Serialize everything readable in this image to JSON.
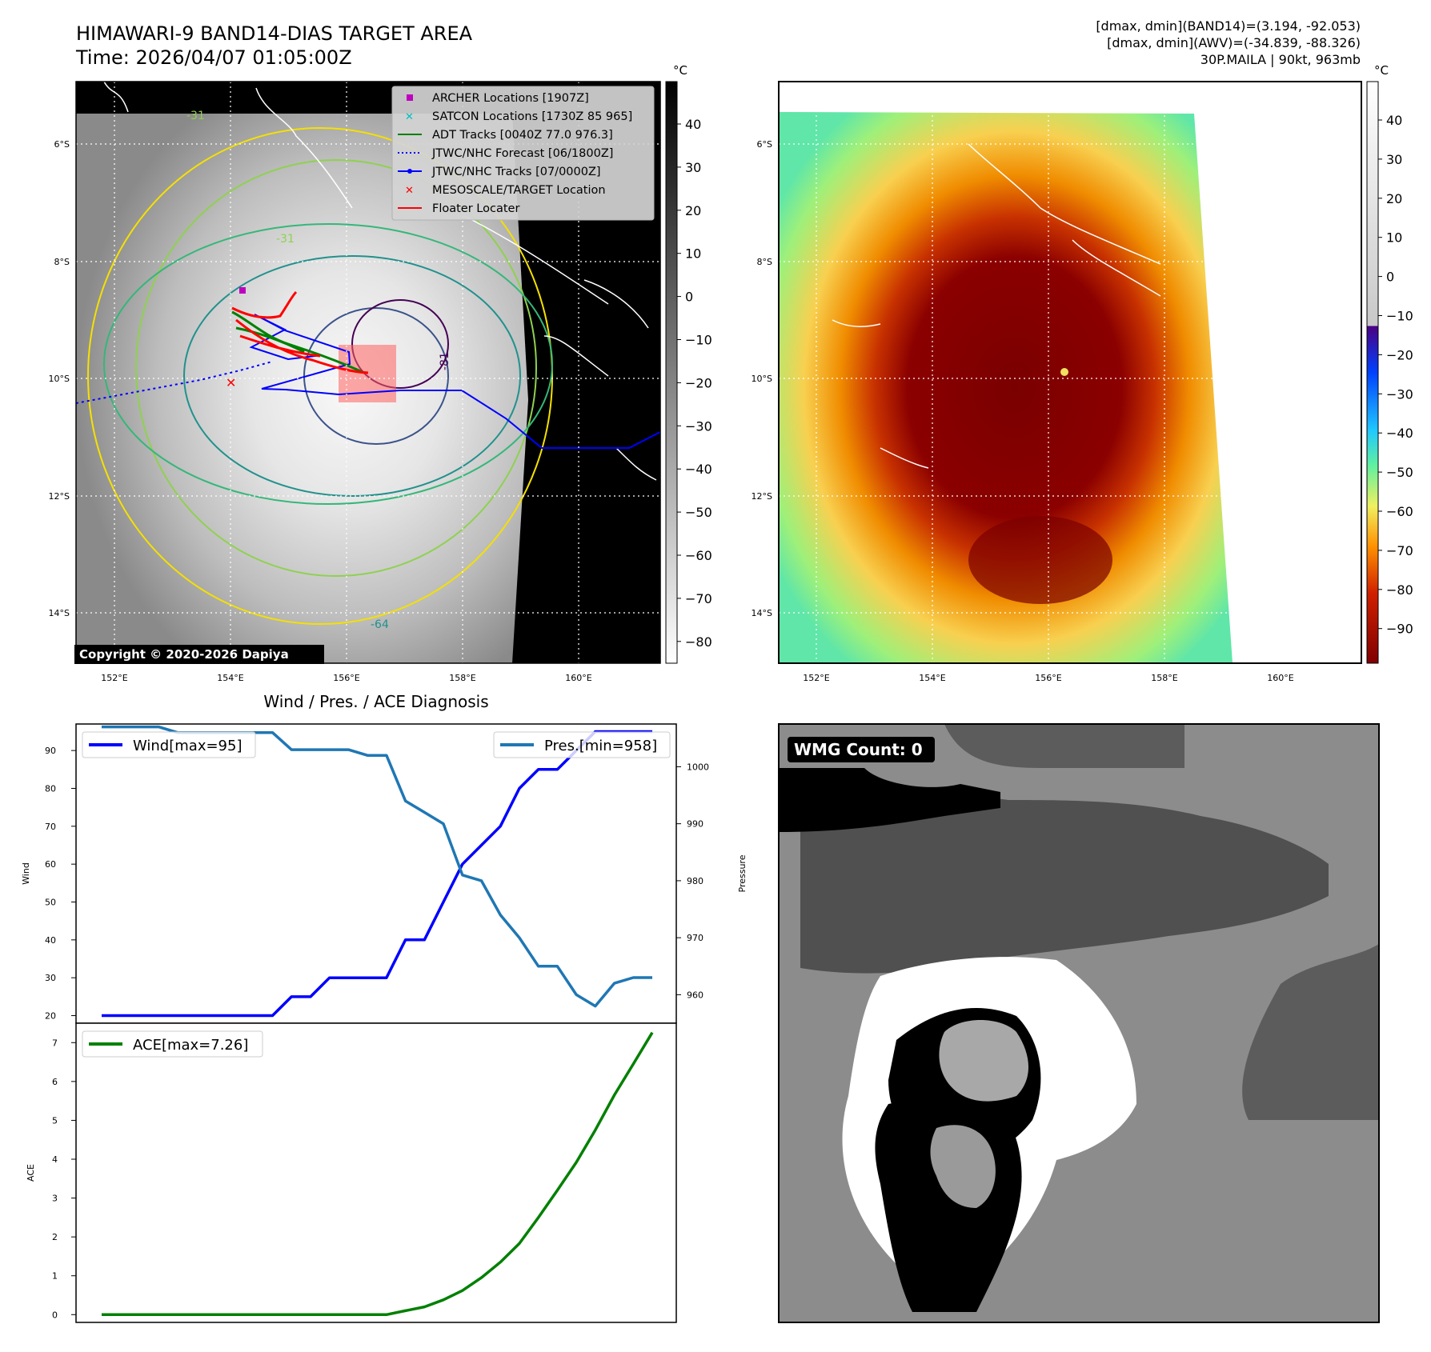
{
  "header": {
    "title_line1": "HIMAWARI-9 BAND14-DIAS TARGET AREA",
    "title_line2": "Time: 2026/04/07 01:05:00Z",
    "info_line1": "[dmax, dmin](BAND14)=(3.194, -92.053)",
    "info_line2": "[dmax, dmin](AWV)=(-34.839, -88.326)",
    "info_line3": "30P.MAILA | 90kt, 963mb"
  },
  "ir_map": {
    "lat_ticks": [
      "6°S",
      "8°S",
      "10°S",
      "12°S",
      "14°S"
    ],
    "lon_ticks": [
      "152°E",
      "154°E",
      "156°E",
      "158°E",
      "160°E"
    ],
    "copyright": "Copyright © 2020-2026 Dapiya",
    "contour_labels": [
      "-31",
      "-31",
      "-81",
      "-64"
    ],
    "legend": [
      {
        "label": "ARCHER Locations [1907Z]",
        "color": "#bf00bf"
      },
      {
        "label": "SATCON Locations [1730Z 85 965]",
        "color": "#00bfbf"
      },
      {
        "label": "ADT Tracks [0040Z 77.0 976.3]",
        "color": "#008000"
      },
      {
        "label": "JTWC/NHC Forecast [06/1800Z]",
        "color": "#0000ff"
      },
      {
        "label": "JTWC/NHC Tracks [07/0000Z]",
        "color": "#0000ff"
      },
      {
        "label": "MESOSCALE/TARGET Location",
        "color": "#ff0000"
      },
      {
        "label": "Floater Locater",
        "color": "#ff0000"
      }
    ],
    "colorbar_unit": "°C",
    "colorbar_ticks": [
      "40",
      "30",
      "20",
      "10",
      "0",
      "−10",
      "−20",
      "−30",
      "−40",
      "−50",
      "−60",
      "−70",
      "−80"
    ]
  },
  "awv_map": {
    "lat_ticks": [
      "6°S",
      "8°S",
      "10°S",
      "12°S",
      "14°S"
    ],
    "lon_ticks": [
      "152°E",
      "154°E",
      "156°E",
      "158°E",
      "160°E"
    ],
    "colorbar_unit": "°C",
    "colorbar_ticks": [
      "40",
      "30",
      "20",
      "10",
      "0",
      "−10",
      "−20",
      "−30",
      "−40",
      "−50",
      "−60",
      "−70",
      "−80",
      "−90"
    ]
  },
  "wmg": {
    "count_label": "WMG Count: 0"
  },
  "chart_data": [
    {
      "type": "line",
      "title": "Wind / Pres. / ACE Diagnosis",
      "ylabel": "Wind",
      "ylabel2": "Pressure",
      "ylim": [
        18,
        97
      ],
      "ylim2": [
        955,
        1007.5
      ],
      "yticks": [
        20,
        30,
        40,
        50,
        60,
        70,
        80,
        90
      ],
      "yticks2": [
        960,
        970,
        980,
        990,
        1000
      ],
      "series": [
        {
          "name": "Wind",
          "legend": "Wind[max=95]",
          "color": "#0000ff",
          "axis": "left",
          "values": [
            20,
            20,
            20,
            20,
            20,
            20,
            20,
            20,
            20,
            20,
            25,
            25,
            30,
            30,
            30,
            30,
            40,
            40,
            50,
            60,
            65,
            70,
            80,
            85,
            85,
            90,
            95,
            95,
            95,
            95
          ]
        },
        {
          "name": "Pres.",
          "legend": "Pres.[min=958]",
          "color": "#1f77b4",
          "axis": "right",
          "values": [
            1007,
            1007,
            1007,
            1007,
            1006,
            1006,
            1006,
            1006,
            1006,
            1006,
            1003,
            1003,
            1003,
            1003,
            1002,
            1002,
            994,
            992,
            990,
            981,
            980,
            974,
            970,
            965,
            965,
            960,
            958,
            962,
            963,
            963
          ]
        }
      ]
    },
    {
      "type": "line",
      "ylabel": "ACE",
      "ylim": [
        -0.2,
        7.5
      ],
      "yticks": [
        0,
        1,
        2,
        3,
        4,
        5,
        6,
        7
      ],
      "series": [
        {
          "name": "ACE",
          "legend": "ACE[max=7.26]",
          "color": "#008000",
          "values": [
            0,
            0,
            0,
            0,
            0,
            0,
            0,
            0,
            0,
            0,
            0,
            0,
            0,
            0,
            0,
            0,
            0.1,
            0.2,
            0.38,
            0.62,
            0.95,
            1.35,
            1.83,
            2.5,
            3.2,
            3.92,
            4.75,
            5.65,
            6.45,
            7.26
          ]
        }
      ]
    }
  ]
}
